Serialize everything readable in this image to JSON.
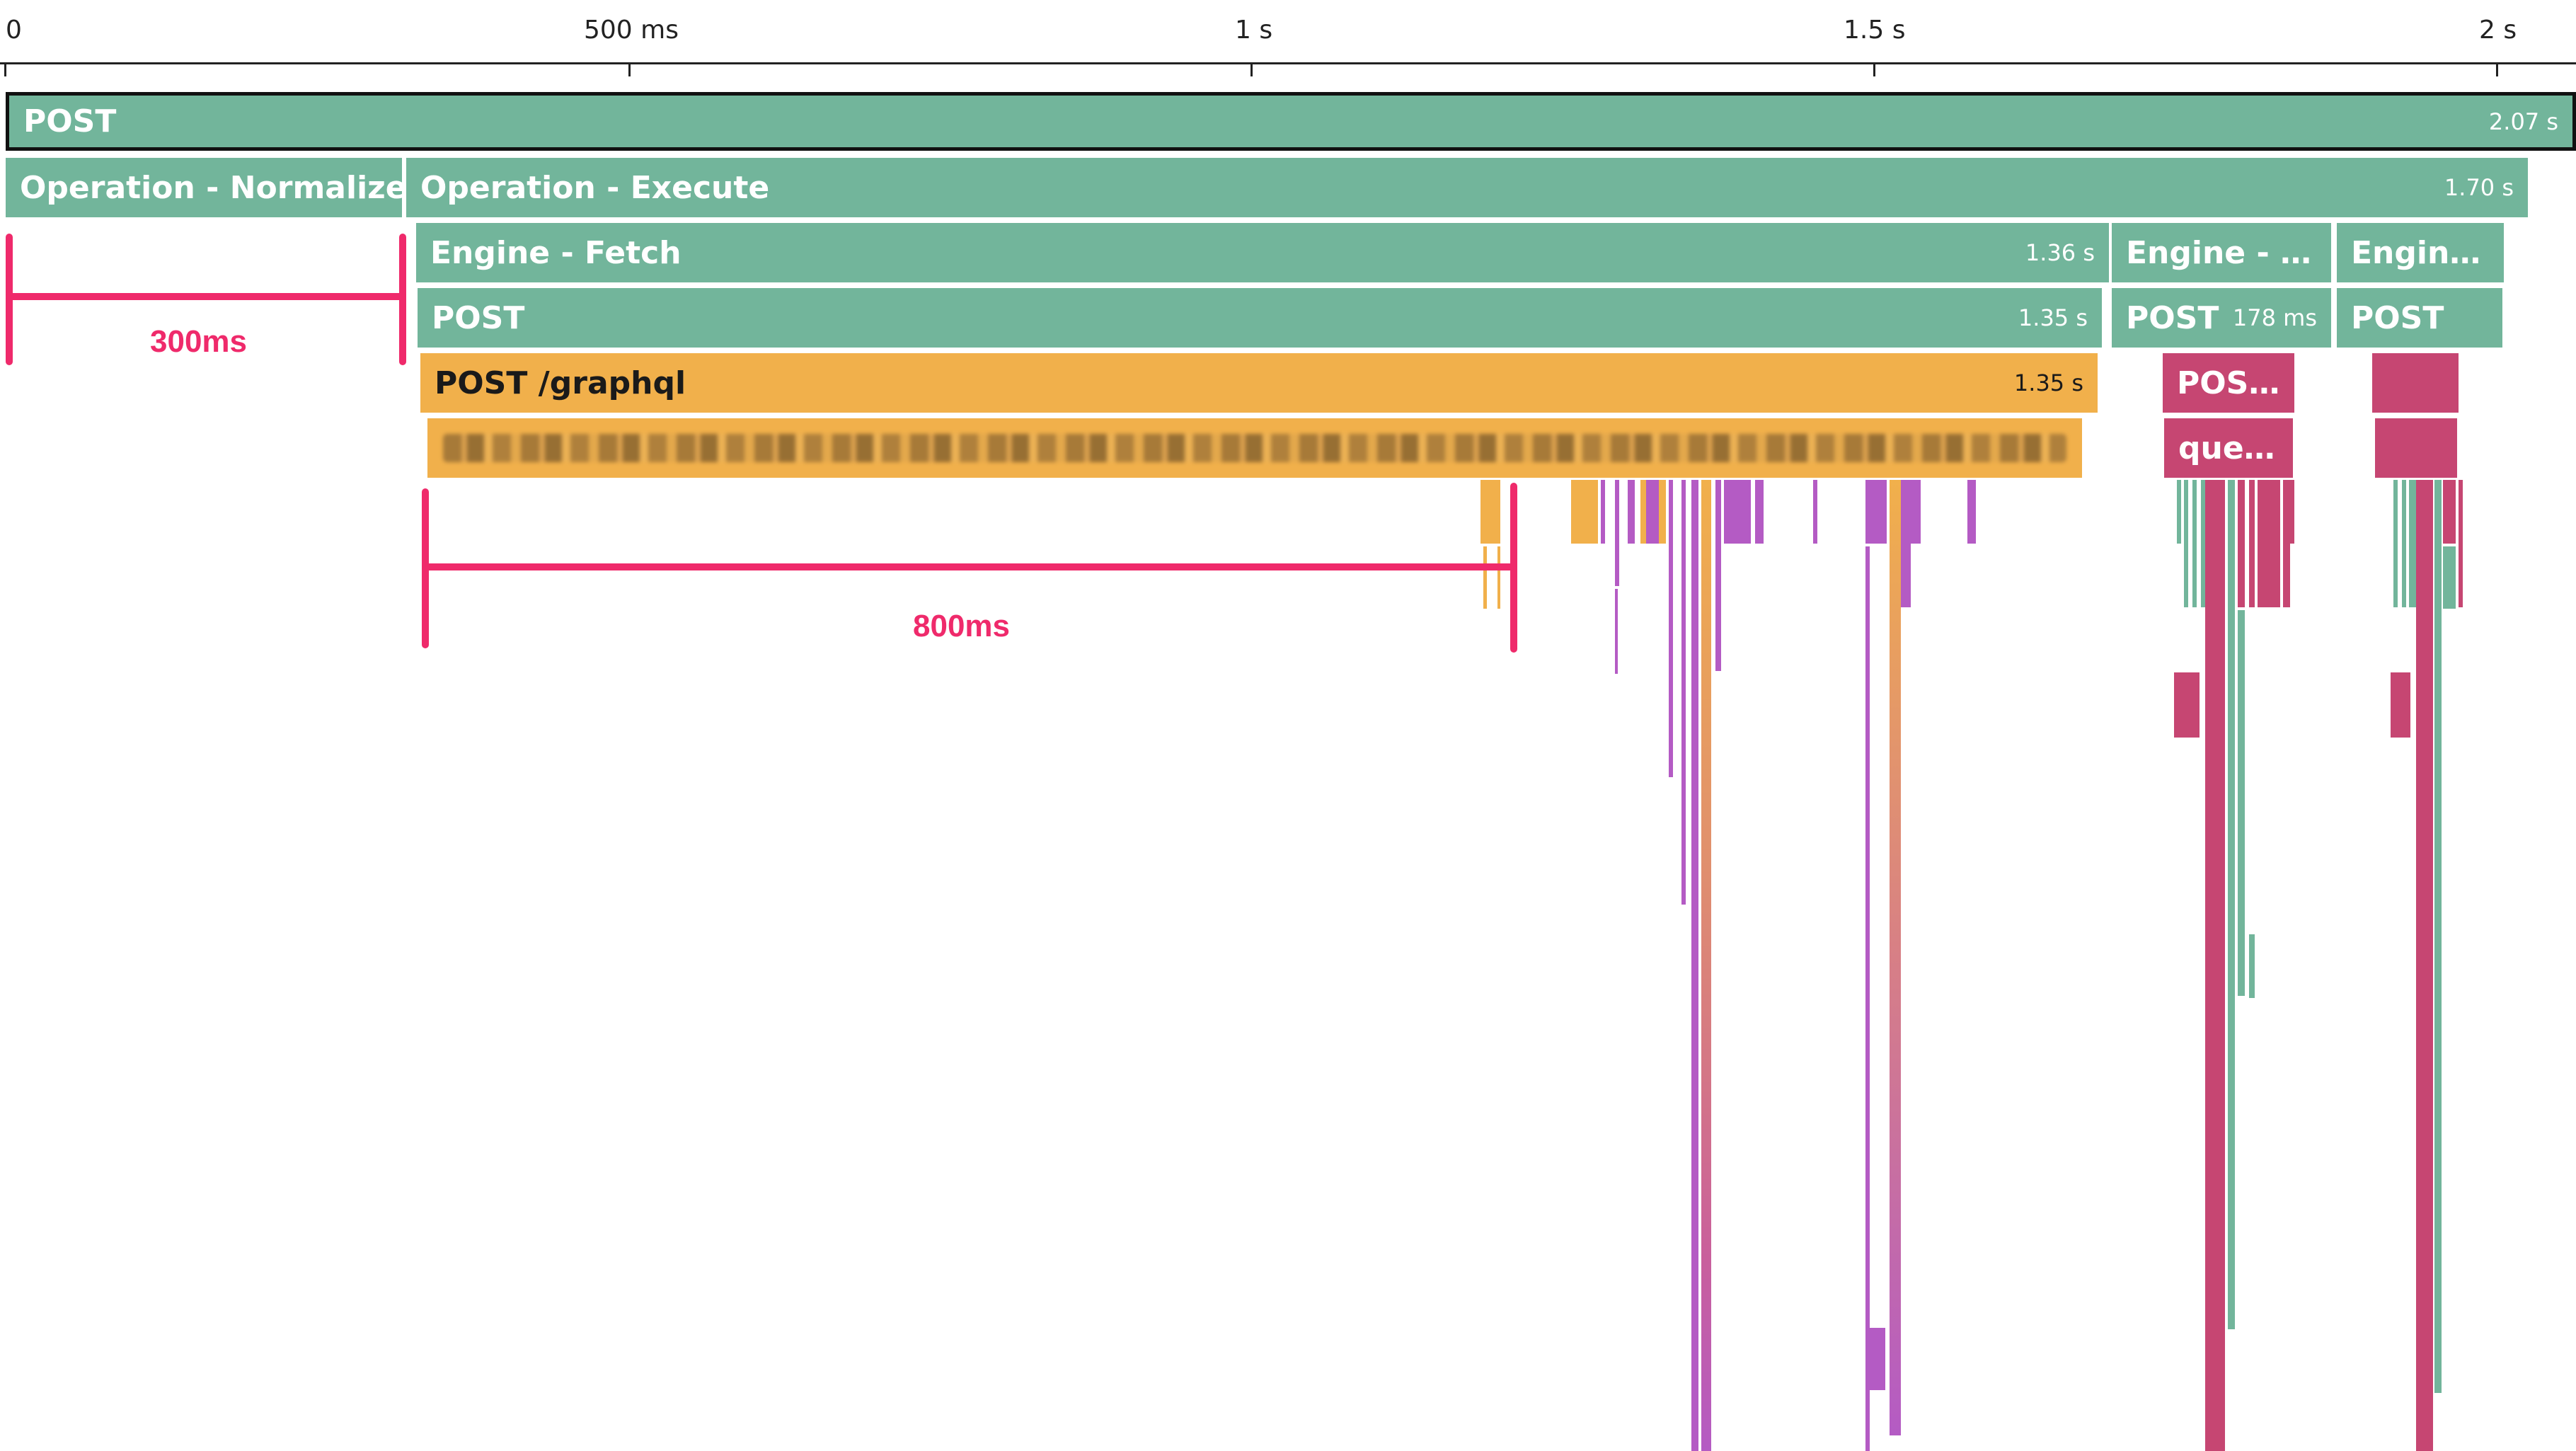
{
  "ruler": {
    "ticks": [
      "0",
      "500 ms",
      "1 s",
      "1.5 s",
      "2 s"
    ]
  },
  "spans": [
    {
      "id": "root-post",
      "name": "POST",
      "duration": "2.07 s",
      "color": "#72b59b"
    },
    {
      "id": "operation-normalize",
      "name": "Operation - Normalize",
      "duration": "",
      "color": "#72b59b"
    },
    {
      "id": "operation-execute",
      "name": "Operation - Execute",
      "duration": "1.70 s",
      "color": "#72b59b"
    },
    {
      "id": "engine-fetch",
      "name": "Engine - Fetch",
      "duration": "1.36 s",
      "color": "#72b59b"
    },
    {
      "id": "engine-2",
      "name": "Engine - …",
      "duration": "",
      "color": "#72b59b"
    },
    {
      "id": "engine-3",
      "name": "Engin…",
      "duration": "",
      "color": "#72b59b"
    },
    {
      "id": "post-fetch",
      "name": "POST",
      "duration": "1.35 s",
      "color": "#72b59b"
    },
    {
      "id": "post-2",
      "name": "POST",
      "duration": "178 ms",
      "color": "#72b59b"
    },
    {
      "id": "post-3",
      "name": "POST",
      "duration": "",
      "color": "#72b59b"
    },
    {
      "id": "post-graphql",
      "name": "POST /graphql",
      "duration": "1.35 s",
      "color": "#f1b04b"
    },
    {
      "id": "pos-truncated",
      "name": "POS…",
      "duration": "",
      "color": "#c64672"
    },
    {
      "id": "pos-4",
      "name": "",
      "duration": "",
      "color": "#c64672"
    },
    {
      "id": "query-blurred",
      "name": "",
      "duration": "",
      "color": "#f1b04b"
    },
    {
      "id": "que-truncated",
      "name": "que…",
      "duration": "",
      "color": "#c64672"
    },
    {
      "id": "que-4",
      "name": "",
      "duration": "",
      "color": "#c64672"
    }
  ],
  "annotations": [
    {
      "id": "annot-300ms",
      "label": "300ms",
      "color": "#ef2a6b"
    },
    {
      "id": "annot-800ms",
      "label": "800ms",
      "color": "#ef2a6b"
    }
  ],
  "colors": {
    "green": "#72b59b",
    "orange": "#f1b04b",
    "magenta": "#c64672",
    "purple": "#b45bc4",
    "annotation": "#ef2a6b"
  }
}
